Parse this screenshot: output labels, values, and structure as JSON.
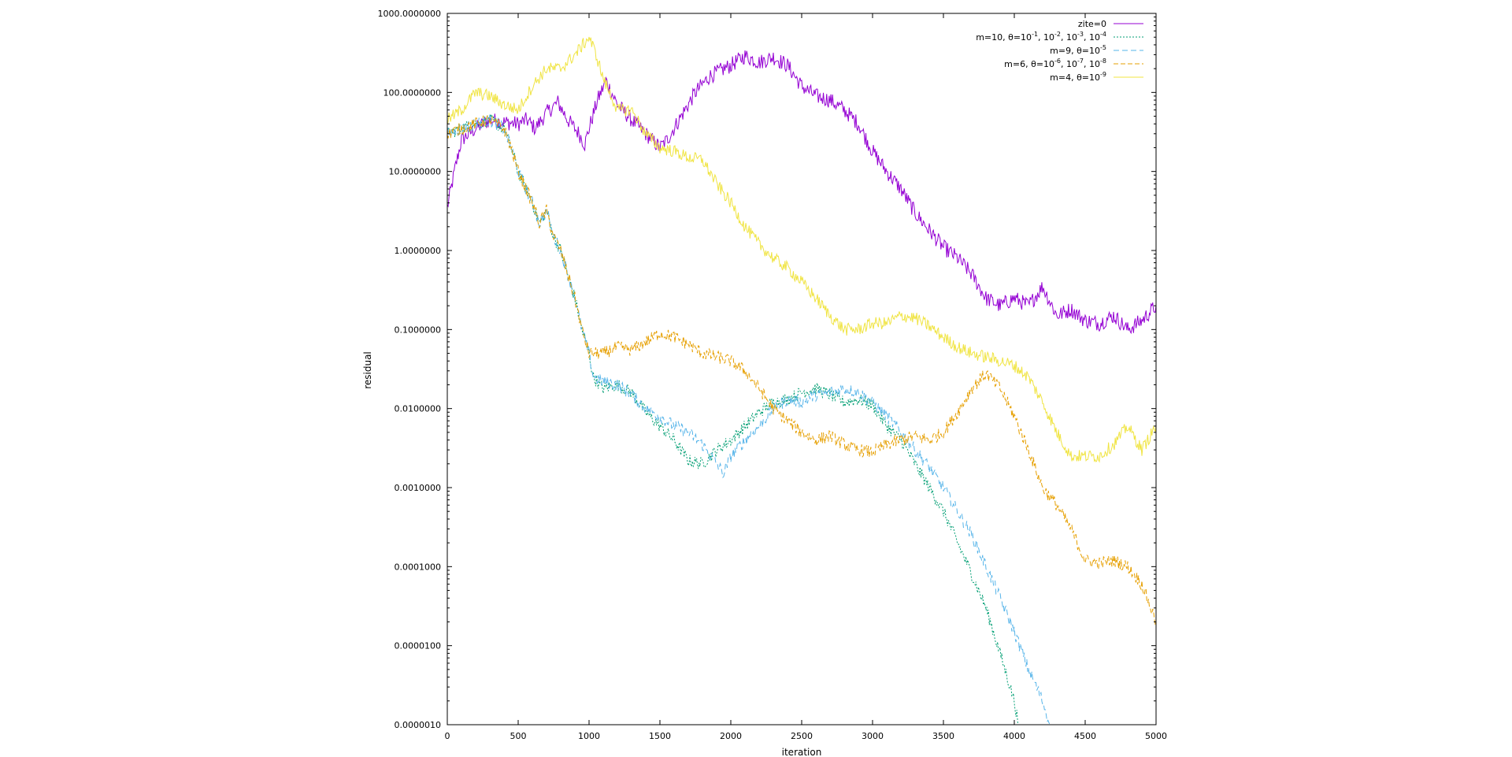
{
  "chart_data": {
    "type": "line",
    "title": "",
    "xlabel": "iteration",
    "ylabel": "residual",
    "xlim": [
      0,
      5000
    ],
    "ylim": [
      1e-06,
      1000
    ],
    "yscale": "log",
    "grid": false,
    "legend_position": "top-right",
    "x_ticks": [
      0,
      500,
      1000,
      1500,
      2000,
      2500,
      3000,
      3500,
      4000,
      4500,
      5000
    ],
    "x_tick_labels": [
      "0",
      "500",
      "1000",
      "1500",
      "2000",
      "2500",
      "3000",
      "3500",
      "4000",
      "4500",
      "5000"
    ],
    "y_ticks": [
      1000,
      100,
      10,
      1,
      0.1,
      0.01,
      0.001,
      0.0001,
      1e-05,
      1e-06
    ],
    "y_tick_labels": [
      "1000.0000000",
      "100.0000000",
      "10.0000000",
      "1.0000000",
      "0.1000000",
      "0.0100000",
      "0.0010000",
      "0.0001000",
      "0.0000100",
      "0.0000010"
    ],
    "series": [
      {
        "name": "zite=0",
        "legend_parts": [
          [
            "zite=0",
            ""
          ]
        ],
        "color": "#9400d3",
        "dash": "",
        "noise": 0.1,
        "points": [
          [
            0,
            3.5
          ],
          [
            60,
            12
          ],
          [
            100,
            25
          ],
          [
            200,
            35
          ],
          [
            300,
            45
          ],
          [
            400,
            42
          ],
          [
            500,
            40
          ],
          [
            560,
            45
          ],
          [
            620,
            35
          ],
          [
            700,
            55
          ],
          [
            780,
            75
          ],
          [
            850,
            45
          ],
          [
            930,
            30
          ],
          [
            970,
            22
          ],
          [
            1000,
            35
          ],
          [
            1060,
            80
          ],
          [
            1120,
            140
          ],
          [
            1200,
            70
          ],
          [
            1300,
            45
          ],
          [
            1400,
            30
          ],
          [
            1500,
            20
          ],
          [
            1550,
            25
          ],
          [
            1650,
            50
          ],
          [
            1750,
            100
          ],
          [
            1850,
            160
          ],
          [
            2000,
            220
          ],
          [
            2100,
            290
          ],
          [
            2200,
            240
          ],
          [
            2300,
            280
          ],
          [
            2400,
            220
          ],
          [
            2500,
            120
          ],
          [
            2600,
            90
          ],
          [
            2700,
            80
          ],
          [
            2800,
            60
          ],
          [
            2900,
            40
          ],
          [
            3000,
            18
          ],
          [
            3100,
            10
          ],
          [
            3200,
            6
          ],
          [
            3300,
            3
          ],
          [
            3400,
            1.8
          ],
          [
            3500,
            1.1
          ],
          [
            3600,
            0.8
          ],
          [
            3700,
            0.5
          ],
          [
            3800,
            0.25
          ],
          [
            3900,
            0.2
          ],
          [
            4000,
            0.25
          ],
          [
            4100,
            0.2
          ],
          [
            4200,
            0.35
          ],
          [
            4300,
            0.15
          ],
          [
            4400,
            0.18
          ],
          [
            4500,
            0.13
          ],
          [
            4600,
            0.12
          ],
          [
            4700,
            0.15
          ],
          [
            4800,
            0.1
          ],
          [
            4900,
            0.13
          ],
          [
            5000,
            0.2
          ]
        ]
      },
      {
        "name": "m=10, θ=10-1, 10-2, 10-3, 10-4",
        "legend_parts": [
          [
            "m=10, θ=10",
            "-1"
          ],
          [
            ", 10",
            "-2"
          ],
          [
            ", 10",
            "-3"
          ],
          [
            ", 10",
            "-4"
          ]
        ],
        "color": "#009e73",
        "dash": "2,2",
        "noise": 0.08,
        "points": [
          [
            0,
            30
          ],
          [
            100,
            35
          ],
          [
            200,
            40
          ],
          [
            300,
            45
          ],
          [
            400,
            35
          ],
          [
            450,
            20
          ],
          [
            500,
            10
          ],
          [
            600,
            4
          ],
          [
            650,
            2.2
          ],
          [
            700,
            3.2
          ],
          [
            750,
            1.5
          ],
          [
            800,
            1
          ],
          [
            850,
            0.5
          ],
          [
            900,
            0.25
          ],
          [
            950,
            0.1
          ],
          [
            1000,
            0.05
          ],
          [
            1030,
            0.025
          ],
          [
            1100,
            0.018
          ],
          [
            1200,
            0.02
          ],
          [
            1300,
            0.016
          ],
          [
            1400,
            0.009
          ],
          [
            1500,
            0.006
          ],
          [
            1600,
            0.004
          ],
          [
            1700,
            0.0022
          ],
          [
            1800,
            0.002
          ],
          [
            1900,
            0.003
          ],
          [
            2000,
            0.004
          ],
          [
            2100,
            0.006
          ],
          [
            2200,
            0.009
          ],
          [
            2300,
            0.012
          ],
          [
            2400,
            0.013
          ],
          [
            2500,
            0.016
          ],
          [
            2600,
            0.018
          ],
          [
            2700,
            0.015
          ],
          [
            2800,
            0.012
          ],
          [
            2900,
            0.013
          ],
          [
            3000,
            0.011
          ],
          [
            3100,
            0.006
          ],
          [
            3200,
            0.004
          ],
          [
            3300,
            0.002
          ],
          [
            3400,
            0.001
          ],
          [
            3500,
            0.0005
          ],
          [
            3600,
            0.0002
          ],
          [
            3700,
            8e-05
          ],
          [
            3800,
            3e-05
          ],
          [
            3900,
            8e-06
          ],
          [
            4000,
            2e-06
          ],
          [
            4030,
            1e-06
          ]
        ]
      },
      {
        "name": "m=9, θ=10-5",
        "legend_parts": [
          [
            "m=9, θ=10",
            "-5"
          ]
        ],
        "color": "#56b4e9",
        "dash": "7,4",
        "noise": 0.08,
        "points": [
          [
            0,
            30
          ],
          [
            100,
            35
          ],
          [
            200,
            40
          ],
          [
            300,
            45
          ],
          [
            400,
            35
          ],
          [
            450,
            20
          ],
          [
            500,
            10
          ],
          [
            600,
            4
          ],
          [
            650,
            2.2
          ],
          [
            700,
            3.2
          ],
          [
            750,
            1.5
          ],
          [
            800,
            1
          ],
          [
            850,
            0.5
          ],
          [
            900,
            0.25
          ],
          [
            950,
            0.1
          ],
          [
            1000,
            0.05
          ],
          [
            1030,
            0.025
          ],
          [
            1100,
            0.022
          ],
          [
            1200,
            0.02
          ],
          [
            1300,
            0.015
          ],
          [
            1400,
            0.01
          ],
          [
            1500,
            0.008
          ],
          [
            1600,
            0.006
          ],
          [
            1700,
            0.005
          ],
          [
            1800,
            0.0035
          ],
          [
            1900,
            0.002
          ],
          [
            1950,
            0.0015
          ],
          [
            2000,
            0.0025
          ],
          [
            2100,
            0.004
          ],
          [
            2200,
            0.006
          ],
          [
            2300,
            0.01
          ],
          [
            2400,
            0.013
          ],
          [
            2500,
            0.012
          ],
          [
            2600,
            0.015
          ],
          [
            2700,
            0.016
          ],
          [
            2800,
            0.018
          ],
          [
            2900,
            0.016
          ],
          [
            3000,
            0.012
          ],
          [
            3100,
            0.008
          ],
          [
            3200,
            0.005
          ],
          [
            3300,
            0.003
          ],
          [
            3400,
            0.0018
          ],
          [
            3500,
            0.001
          ],
          [
            3600,
            0.0005
          ],
          [
            3700,
            0.00025
          ],
          [
            3800,
            0.0001
          ],
          [
            3900,
            4e-05
          ],
          [
            4000,
            1.5e-05
          ],
          [
            4100,
            5e-06
          ],
          [
            4200,
            2e-06
          ],
          [
            4250,
            1e-06
          ]
        ]
      },
      {
        "name": "m=6, θ=10-6, 10-7, 10-8",
        "legend_parts": [
          [
            "m=6, θ=10",
            "-6"
          ],
          [
            ", 10",
            "-7"
          ],
          [
            ", 10",
            "-8"
          ]
        ],
        "color": "#e69f00",
        "dash": "6,3",
        "noise": 0.08,
        "points": [
          [
            0,
            30
          ],
          [
            100,
            35
          ],
          [
            200,
            40
          ],
          [
            300,
            45
          ],
          [
            400,
            35
          ],
          [
            450,
            20
          ],
          [
            500,
            10
          ],
          [
            600,
            4
          ],
          [
            650,
            2.2
          ],
          [
            700,
            3.2
          ],
          [
            750,
            1.5
          ],
          [
            800,
            1
          ],
          [
            850,
            0.5
          ],
          [
            900,
            0.25
          ],
          [
            950,
            0.1
          ],
          [
            1000,
            0.05
          ],
          [
            1100,
            0.05
          ],
          [
            1200,
            0.06
          ],
          [
            1300,
            0.055
          ],
          [
            1400,
            0.07
          ],
          [
            1500,
            0.09
          ],
          [
            1600,
            0.08
          ],
          [
            1700,
            0.065
          ],
          [
            1800,
            0.05
          ],
          [
            1900,
            0.045
          ],
          [
            2000,
            0.04
          ],
          [
            2100,
            0.03
          ],
          [
            2200,
            0.018
          ],
          [
            2300,
            0.01
          ],
          [
            2400,
            0.007
          ],
          [
            2500,
            0.005
          ],
          [
            2600,
            0.004
          ],
          [
            2700,
            0.0045
          ],
          [
            2800,
            0.0035
          ],
          [
            2900,
            0.003
          ],
          [
            3000,
            0.0028
          ],
          [
            3100,
            0.0035
          ],
          [
            3200,
            0.004
          ],
          [
            3300,
            0.0045
          ],
          [
            3400,
            0.004
          ],
          [
            3500,
            0.005
          ],
          [
            3600,
            0.009
          ],
          [
            3700,
            0.018
          ],
          [
            3800,
            0.028
          ],
          [
            3900,
            0.018
          ],
          [
            4000,
            0.008
          ],
          [
            4100,
            0.003
          ],
          [
            4200,
            0.001
          ],
          [
            4300,
            0.0006
          ],
          [
            4400,
            0.0003
          ],
          [
            4500,
            0.00012
          ],
          [
            4600,
            0.00011
          ],
          [
            4700,
            0.00012
          ],
          [
            4800,
            0.0001
          ],
          [
            4900,
            6e-05
          ],
          [
            5000,
            2e-05
          ]
        ]
      },
      {
        "name": "m=4, θ=10-9",
        "legend_parts": [
          [
            "m=4, θ=10",
            "-9"
          ]
        ],
        "color": "#f0e442",
        "dash": "",
        "noise": 0.08,
        "points": [
          [
            0,
            45
          ],
          [
            100,
            60
          ],
          [
            200,
            100
          ],
          [
            300,
            90
          ],
          [
            400,
            70
          ],
          [
            500,
            60
          ],
          [
            600,
            120
          ],
          [
            700,
            200
          ],
          [
            800,
            200
          ],
          [
            900,
            300
          ],
          [
            1000,
            500
          ],
          [
            1050,
            300
          ],
          [
            1100,
            150
          ],
          [
            1200,
            60
          ],
          [
            1300,
            60
          ],
          [
            1400,
            30
          ],
          [
            1500,
            20
          ],
          [
            1600,
            18
          ],
          [
            1700,
            15
          ],
          [
            1800,
            14
          ],
          [
            1900,
            7
          ],
          [
            2000,
            4
          ],
          [
            2100,
            2
          ],
          [
            2200,
            1.2
          ],
          [
            2300,
            0.8
          ],
          [
            2400,
            0.6
          ],
          [
            2500,
            0.4
          ],
          [
            2600,
            0.25
          ],
          [
            2700,
            0.15
          ],
          [
            2800,
            0.1
          ],
          [
            2900,
            0.1
          ],
          [
            3000,
            0.12
          ],
          [
            3100,
            0.12
          ],
          [
            3200,
            0.15
          ],
          [
            3300,
            0.14
          ],
          [
            3400,
            0.11
          ],
          [
            3500,
            0.08
          ],
          [
            3600,
            0.06
          ],
          [
            3700,
            0.05
          ],
          [
            3800,
            0.045
          ],
          [
            3900,
            0.04
          ],
          [
            4000,
            0.035
          ],
          [
            4100,
            0.025
          ],
          [
            4200,
            0.012
          ],
          [
            4300,
            0.005
          ],
          [
            4400,
            0.0025
          ],
          [
            4500,
            0.0025
          ],
          [
            4600,
            0.0025
          ],
          [
            4700,
            0.0035
          ],
          [
            4800,
            0.006
          ],
          [
            4900,
            0.003
          ],
          [
            5000,
            0.006
          ]
        ]
      }
    ]
  }
}
